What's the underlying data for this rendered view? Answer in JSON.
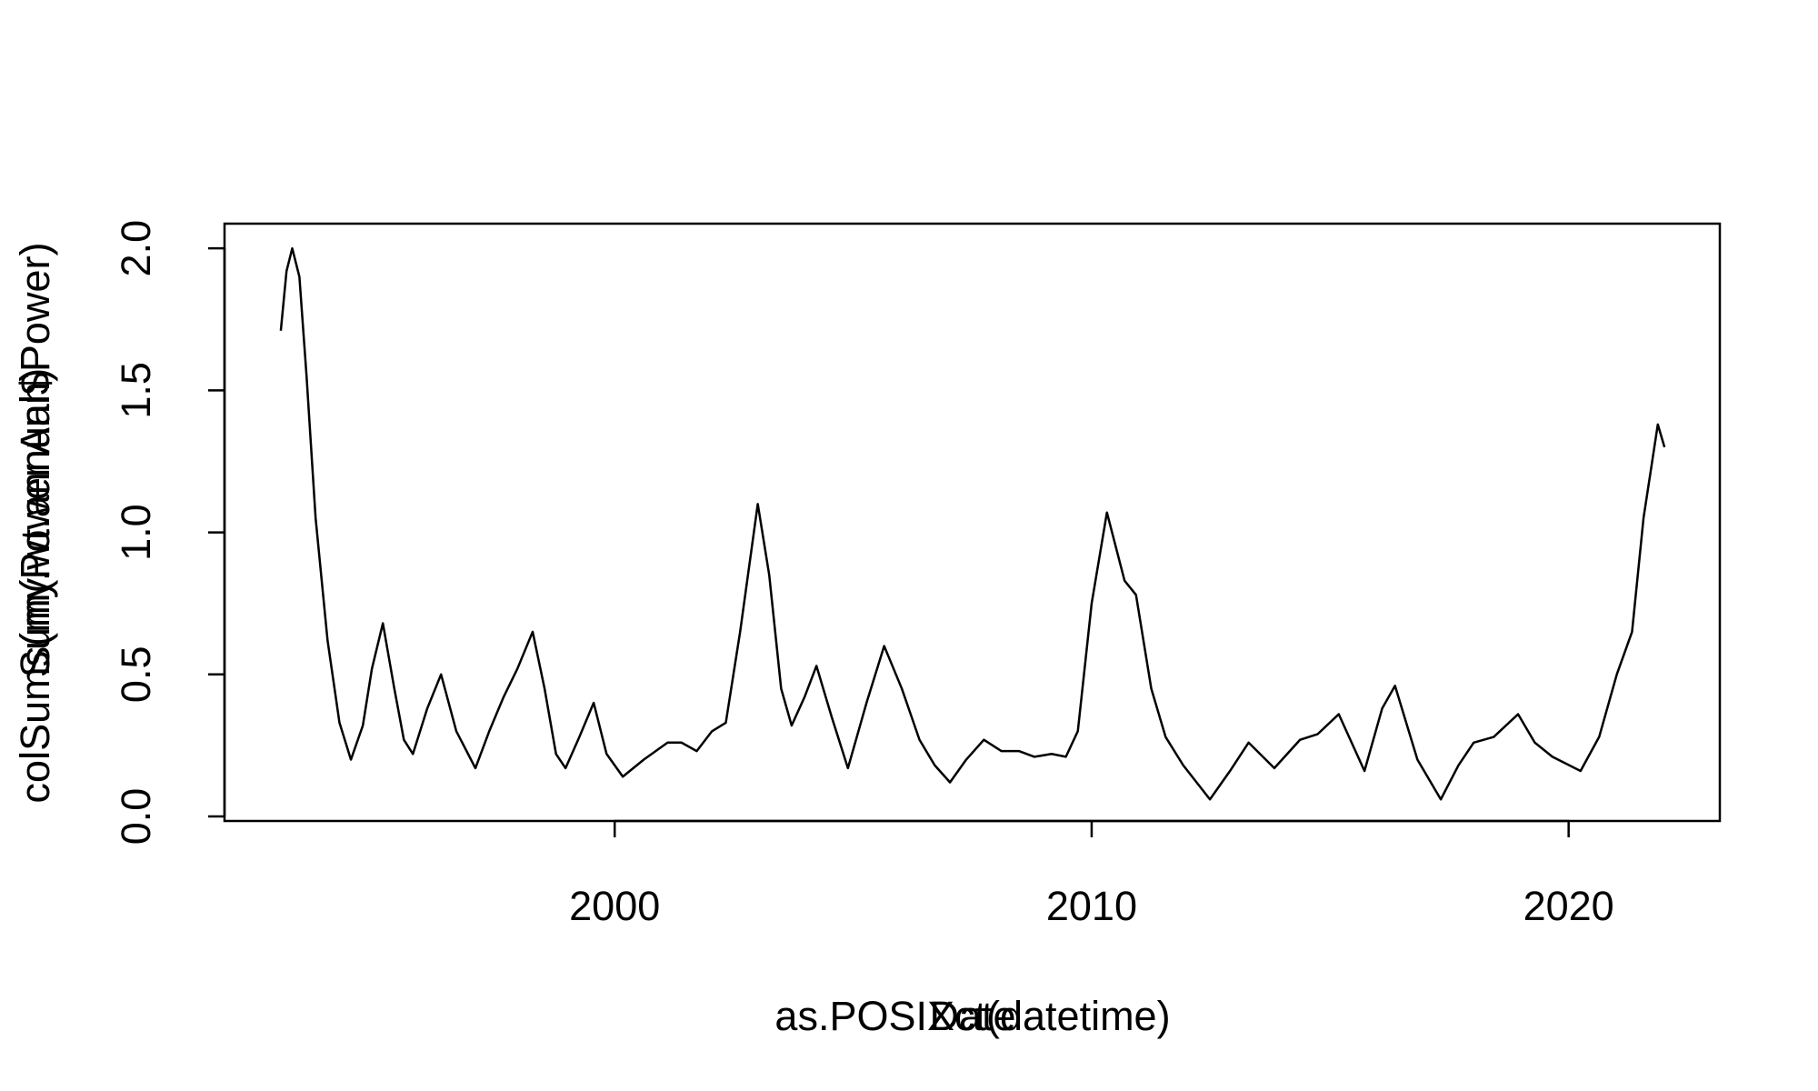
{
  "chart_data": {
    "type": "line",
    "x_labels": [
      "as.POSIXct(datetime)",
      "Date"
    ],
    "y_labels": [
      "colSums(my.wt.annual$Power)",
      "Sum(Power Ann)"
    ],
    "x": [
      1993.0,
      1993.12,
      1993.24,
      1993.39,
      1993.54,
      1993.73,
      1993.98,
      1994.23,
      1994.47,
      1994.72,
      1994.91,
      1995.14,
      1995.38,
      1995.58,
      1995.77,
      1996.07,
      1996.36,
      1996.68,
      1997.08,
      1997.37,
      1997.67,
      1997.96,
      1998.28,
      1998.53,
      1998.77,
      1998.97,
      1999.26,
      1999.56,
      1999.83,
      2000.17,
      2000.61,
      2001.11,
      2001.4,
      2001.72,
      2002.04,
      2002.33,
      2002.63,
      2003.0,
      2003.24,
      2003.49,
      2003.71,
      2003.98,
      2004.23,
      2004.55,
      2004.89,
      2005.28,
      2005.65,
      2006.02,
      2006.39,
      2006.71,
      2007.03,
      2007.37,
      2007.74,
      2008.11,
      2008.48,
      2008.8,
      2009.16,
      2009.46,
      2009.71,
      2010.0,
      2010.32,
      2010.69,
      2010.93,
      2011.25,
      2011.55,
      2011.92,
      2012.48,
      2012.9,
      2013.29,
      2013.83,
      2014.37,
      2014.74,
      2015.18,
      2015.72,
      2016.09,
      2016.36,
      2016.83,
      2017.32,
      2017.69,
      2018.01,
      2018.43,
      2018.94,
      2019.29,
      2019.66,
      2020.25,
      2020.64,
      2021.01,
      2021.33,
      2021.57,
      2021.87,
      2022.01
    ],
    "values": [
      1.71,
      1.92,
      2.0,
      1.9,
      1.55,
      1.05,
      0.62,
      0.33,
      0.2,
      0.32,
      0.52,
      0.68,
      0.45,
      0.27,
      0.22,
      0.38,
      0.5,
      0.3,
      0.17,
      0.3,
      0.42,
      0.52,
      0.65,
      0.45,
      0.22,
      0.17,
      0.28,
      0.4,
      0.22,
      0.14,
      0.2,
      0.26,
      0.26,
      0.23,
      0.3,
      0.33,
      0.65,
      1.1,
      0.85,
      0.45,
      0.32,
      0.42,
      0.53,
      0.35,
      0.17,
      0.4,
      0.6,
      0.45,
      0.27,
      0.18,
      0.12,
      0.2,
      0.27,
      0.23,
      0.23,
      0.21,
      0.22,
      0.21,
      0.3,
      0.75,
      1.07,
      0.83,
      0.78,
      0.45,
      0.28,
      0.18,
      0.06,
      0.16,
      0.26,
      0.17,
      0.27,
      0.29,
      0.36,
      0.16,
      0.38,
      0.46,
      0.2,
      0.06,
      0.18,
      0.26,
      0.28,
      0.36,
      0.26,
      0.21,
      0.16,
      0.28,
      0.5,
      0.65,
      1.05,
      1.38,
      1.3
    ],
    "color": "#000000",
    "xlim": [
      1991.82,
      2023.17
    ],
    "ylim": [
      -0.016,
      2.087
    ],
    "xticks": [
      2000,
      2010,
      2020
    ],
    "yticks": [
      {
        "value": 0,
        "label": "0.0"
      },
      {
        "value": 0.5,
        "label": "0.5"
      },
      {
        "value": 1,
        "label": "1.0"
      },
      {
        "value": 1.5,
        "label": "1.5"
      },
      {
        "value": 2,
        "label": "2.0"
      }
    ]
  }
}
